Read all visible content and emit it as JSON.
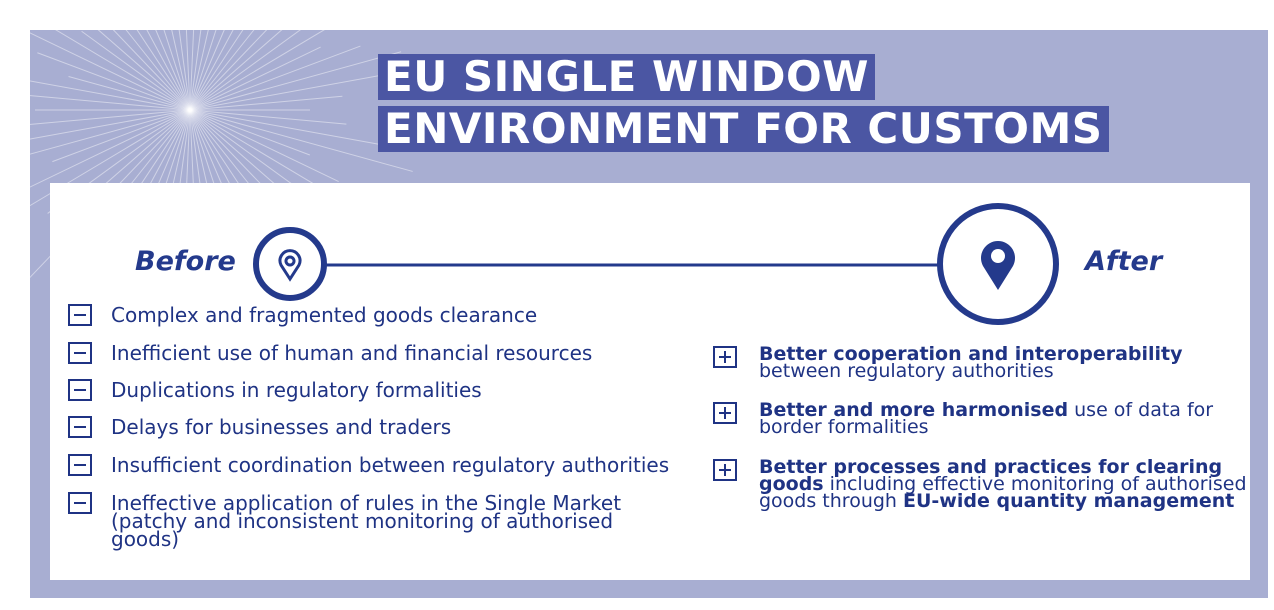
{
  "title": {
    "lines": [
      "EU SINGLE WINDOW",
      "ENVIRONMENT FOR CUSTOMS"
    ]
  },
  "timeline": {
    "before": "Before",
    "after": "After"
  },
  "before_items": [
    "Complex and fragmented goods clearance",
    "Inefficient use of human and financial resources",
    "Duplications in regulatory formalities",
    "Delays for businesses and traders",
    "Insufficient coordination between regulatory authorities",
    "Ineffective application of rules in the Single Market (patchy and inconsistent monitoring of authorised goods)"
  ],
  "after_items": [
    {
      "parts": [
        {
          "text": "Better cooperation and interoperability",
          "bold": true
        },
        {
          "text": " between regulatory authorities",
          "bold": false
        }
      ]
    },
    {
      "parts": [
        {
          "text": "Better and more harmonised",
          "bold": true
        },
        {
          "text": " use of data for border formalities",
          "bold": false
        }
      ]
    },
    {
      "parts": [
        {
          "text": "Better processes and practices for clearing goods",
          "bold": true
        },
        {
          "text": " including effective monitoring of authorised goods through ",
          "bold": false
        },
        {
          "text": "EU-wide quantity management",
          "bold": true
        }
      ]
    }
  ]
}
